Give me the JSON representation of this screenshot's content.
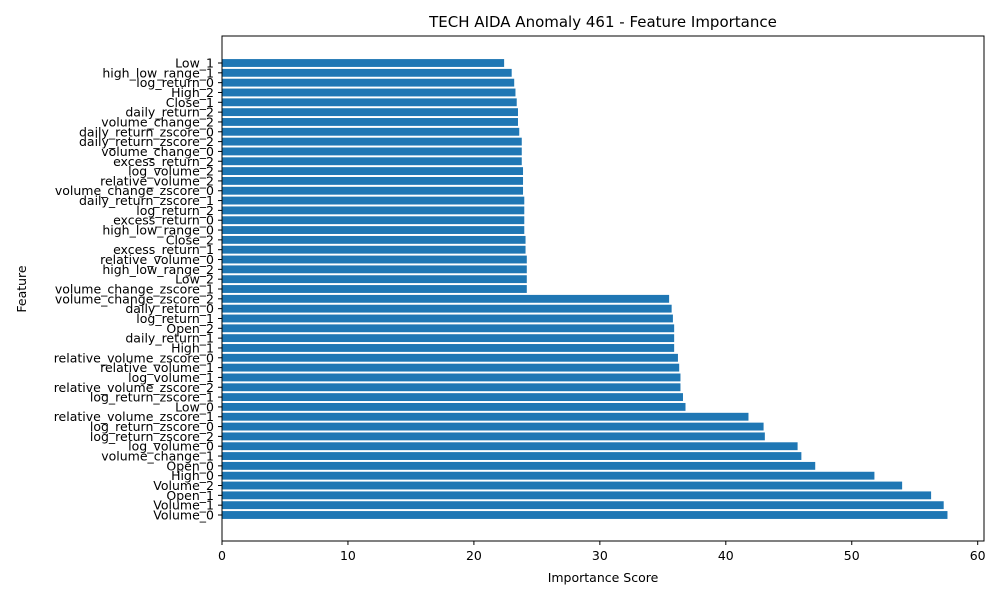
{
  "chart_data": {
    "type": "bar",
    "orientation": "horizontal",
    "title": "TECH AIDA Anomaly 461 - Feature Importance",
    "xlabel": "Importance Score",
    "ylabel": "Feature",
    "xlim": [
      0,
      60.5
    ],
    "xticks": [
      0,
      10,
      20,
      30,
      40,
      50,
      60
    ],
    "grid": false,
    "bar_color": "#1f77b4",
    "categories": [
      "Volume_0",
      "Volume_1",
      "Open_1",
      "Volume_2",
      "High_0",
      "Open_0",
      "volume_change_1",
      "log_volume_0",
      "log_return_zscore_2",
      "log_return_zscore_0",
      "relative_volume_zscore_1",
      "Low_0",
      "log_return_zscore_1",
      "relative_volume_zscore_2",
      "log_volume_1",
      "relative_volume_1",
      "relative_volume_zscore_0",
      "High_1",
      "daily_return_1",
      "Open_2",
      "log_return_1",
      "daily_return_0",
      "volume_change_zscore_2",
      "volume_change_zscore_1",
      "Low_2",
      "high_low_range_2",
      "relative_volume_0",
      "excess_return_1",
      "Close_2",
      "high_low_range_0",
      "excess_return_0",
      "log_return_2",
      "daily_return_zscore_1",
      "volume_change_zscore_0",
      "relative_volume_2",
      "log_volume_2",
      "excess_return_2",
      "volume_change_0",
      "daily_return_zscore_2",
      "daily_return_zscore_0",
      "volume_change_2",
      "daily_return_2",
      "Close_1",
      "High_2",
      "log_return_0",
      "high_low_range_1",
      "Low_1"
    ],
    "values": [
      57.6,
      57.3,
      56.3,
      54.0,
      51.8,
      47.1,
      46.0,
      45.7,
      43.1,
      43.0,
      41.8,
      36.8,
      36.6,
      36.4,
      36.4,
      36.3,
      36.2,
      35.9,
      35.9,
      35.9,
      35.8,
      35.7,
      35.5,
      24.2,
      24.2,
      24.2,
      24.2,
      24.1,
      24.1,
      24.0,
      24.0,
      24.0,
      24.0,
      23.9,
      23.9,
      23.9,
      23.8,
      23.8,
      23.8,
      23.6,
      23.5,
      23.5,
      23.4,
      23.3,
      23.2,
      23.0,
      22.4
    ]
  }
}
